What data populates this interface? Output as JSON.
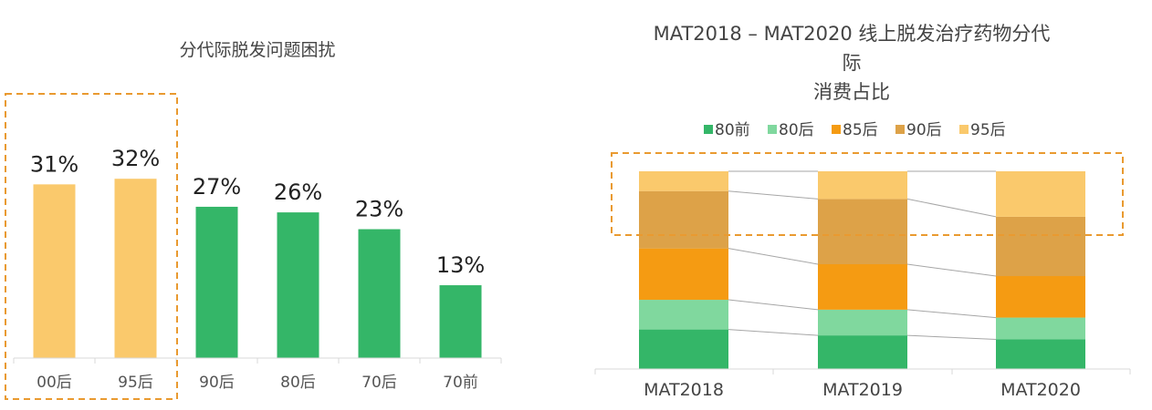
{
  "chart_data": [
    {
      "type": "bar",
      "title": "分代际脱发问题困扰",
      "categories": [
        "00后",
        "95后",
        "90后",
        "80后",
        "70后",
        "70前"
      ],
      "values": [
        31,
        32,
        27,
        26,
        23,
        13
      ],
      "value_labels": [
        "31%",
        "32%",
        "27%",
        "26%",
        "23%",
        "13%"
      ],
      "highlighted_categories": [
        "00后",
        "95后"
      ],
      "colors": {
        "highlight": "#FAC96C",
        "normal": "#34B668",
        "dashed_box": "#E99A30",
        "axis": "#D9D9D9"
      },
      "ylim": [
        0,
        40
      ]
    },
    {
      "type": "bar",
      "stacked": true,
      "percent_stacked": true,
      "title": "MAT2018 – MAT2020 线上脱发治疗药物分代际消费占比",
      "title_lines": [
        "MAT2018 – MAT2020 线上脱发治疗药物分代",
        "际",
        "消费占比"
      ],
      "categories": [
        "MAT2018",
        "MAT2019",
        "MAT2020"
      ],
      "series": [
        {
          "name": "80前",
          "color": "#34B668",
          "values": [
            20,
            17,
            15
          ]
        },
        {
          "name": "80后",
          "color": "#80D89E",
          "values": [
            15,
            13,
            11
          ]
        },
        {
          "name": "85后",
          "color": "#F59B12",
          "values": [
            26,
            23,
            21
          ]
        },
        {
          "name": "90后",
          "color": "#DDA248",
          "values": [
            29,
            33,
            30
          ]
        },
        {
          "name": "95后",
          "color": "#FAC96C",
          "values": [
            10,
            14,
            23
          ]
        }
      ],
      "legend_position": "top",
      "highlighted_series": [
        "95后",
        "90后"
      ],
      "ylim": [
        0,
        100
      ]
    }
  ]
}
